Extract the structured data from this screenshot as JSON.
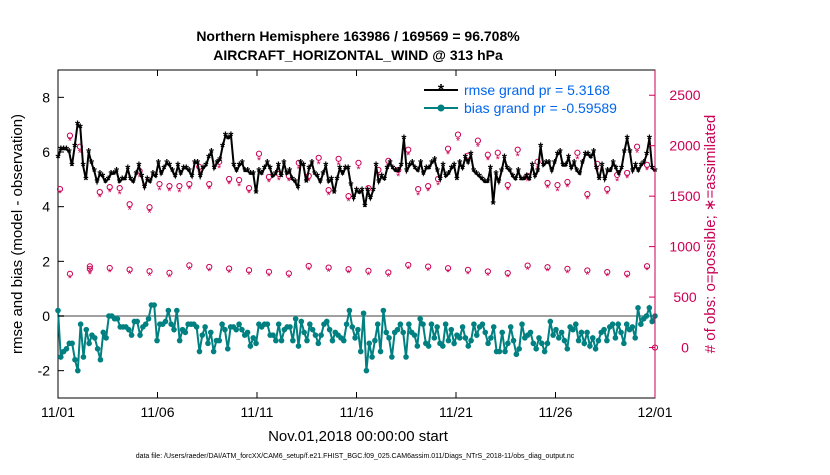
{
  "chart_data": {
    "type": "line",
    "title_line1": "Northern Hemisphere 163986 / 169569 = 96.708%",
    "title_line2": "AIRCRAFT_HORIZONTAL_WIND @ 313 hPa",
    "xlabel": "Nov.01,2018 00:00:00 start",
    "ylabel_left": "rmse and bias (model - observation)",
    "ylabel_right": "# of obs: o=possible; ∗=assimilated",
    "footer": "data file: /Users/raeder/DAI/ATM_forcXX/CAM6_setup/f.e21.FHIST_BGC.f09_025.CAM6assim.011/Diags_NTrS_2018-11/obs_diag_output.nc",
    "x_ticks": [
      "11/01",
      "11/06",
      "11/11",
      "11/16",
      "11/21",
      "11/26",
      "12/01"
    ],
    "x_tick_days": [
      0,
      5,
      10,
      15,
      20,
      25,
      30
    ],
    "xlim": [
      0,
      30
    ],
    "y_left_ticks": [
      "-2",
      "0",
      "2",
      "4",
      "6",
      "8"
    ],
    "y_left_tick_values": [
      -2,
      0,
      2,
      4,
      6,
      8
    ],
    "ylim_left": [
      -3,
      9
    ],
    "y_right_ticks": [
      "0",
      "500",
      "1000",
      "1500",
      "2000",
      "2500"
    ],
    "y_right_tick_values": [
      0,
      500,
      1000,
      1500,
      2000,
      2500
    ],
    "ylim_right": [
      -500,
      2750
    ],
    "legend_location": "top-right",
    "colors": {
      "rmse": "#000000",
      "bias": "#008080",
      "obs": "#cc0055",
      "zero_line": "#a0a0a0",
      "legend_text": "#0066ee"
    },
    "series": [
      {
        "name": "rmse grand pr = 5.3168",
        "axis": "left",
        "marker": "asterisk",
        "values": [
          5.8,
          6.1,
          6.1,
          6.1,
          6.0,
          5.5,
          6.2,
          7.0,
          6.9,
          5.5,
          5.0,
          6.0,
          5.6,
          5.3,
          4.9,
          5.2,
          5.1,
          4.9,
          5.0,
          5.2,
          5.2,
          5.3,
          4.9,
          5.0,
          5.0,
          5.4,
          5.0,
          4.9,
          5.2,
          5.5,
          5.1,
          4.7,
          5.0,
          4.9,
          5.2,
          5.1,
          5.6,
          5.2,
          5.4,
          5.6,
          5.5,
          5.3,
          5.1,
          5.5,
          5.2,
          5.4,
          5.4,
          5.3,
          5.1,
          5.6,
          5.6,
          5.1,
          5.4,
          5.5,
          5.8,
          6.0,
          5.4,
          5.6,
          5.7,
          6.2,
          6.6,
          6.5,
          6.6,
          5.5,
          5.3,
          5.5,
          5.6,
          5.3,
          5.3,
          5.2,
          5.2,
          4.5,
          5.3,
          5.2,
          5.4,
          5.6,
          5.4,
          5.1,
          5.2,
          5.5,
          5.1,
          5.6,
          5.2,
          5.3,
          5.0,
          4.9,
          4.7,
          5.6,
          5.5,
          4.9,
          5.4,
          5.6,
          5.2,
          5.1,
          4.9,
          5.2,
          5.5,
          4.9,
          5.0,
          4.5,
          5.0,
          5.4,
          5.2,
          5.4,
          5.4,
          4.8,
          4.3,
          4.6,
          4.5,
          4.6,
          4.0,
          4.6,
          4.3,
          4.6,
          5.5,
          4.9,
          5.1,
          5.0,
          5.4,
          5.6,
          5.4,
          5.3,
          5.3,
          5.5,
          6.5,
          5.3,
          5.5,
          5.6,
          5.4,
          5.3,
          5.6,
          5.2,
          5.4,
          5.4,
          5.6,
          5.7,
          5.3,
          5.0,
          5.5,
          5.1,
          5.2,
          5.4,
          5.5,
          5.0,
          5.6,
          5.4,
          5.8,
          5.6,
          5.9,
          5.3,
          5.2,
          5.1,
          5.0,
          4.9,
          4.9,
          5.4,
          4.1,
          5.2,
          4.9,
          5.3,
          5.8,
          5.4,
          5.3,
          5.1,
          5.0,
          5.3,
          5.0,
          5.0,
          5.1,
          5.0,
          5.5,
          5.1,
          5.3,
          6.2,
          5.5,
          5.6,
          5.6,
          5.3,
          5.6,
          5.9,
          6.0,
          5.5,
          5.5,
          5.8,
          5.4,
          5.6,
          5.3,
          5.2,
          5.6,
          5.9,
          5.9,
          5.8,
          6.0,
          5.4,
          5.0,
          5.5,
          5.0,
          5.3,
          5.3,
          5.6,
          5.4,
          5.2,
          5.4,
          6.0,
          6.5,
          6.0,
          5.3,
          5.5,
          5.3,
          5.5,
          5.6,
          5.9,
          6.5,
          5.4,
          5.3
        ]
      },
      {
        "name": "bias grand pr = -0.59589",
        "axis": "left",
        "marker": "circle",
        "values": [
          0.2,
          -1.5,
          -1.3,
          -1.2,
          -1.0,
          -1.0,
          -1.6,
          -2.0,
          -0.3,
          -1.5,
          -0.5,
          -1.0,
          -0.7,
          -0.8,
          -1.2,
          -1.6,
          -0.6,
          -0.8,
          0.0,
          0.0,
          -0.1,
          -0.1,
          -0.4,
          -0.4,
          -0.4,
          -0.5,
          -0.7,
          -0.2,
          -0.2,
          -0.7,
          -0.4,
          -0.3,
          -0.1,
          0.4,
          0.4,
          -0.9,
          -0.3,
          -0.3,
          -0.2,
          0.2,
          -0.3,
          -0.5,
          0.2,
          -0.9,
          -0.5,
          -0.6,
          -0.3,
          -0.3,
          -0.3,
          -0.4,
          -1.3,
          -0.7,
          -0.4,
          -1.0,
          -0.6,
          -1.3,
          -0.9,
          -0.9,
          -0.3,
          -0.5,
          -1.2,
          -0.4,
          -0.4,
          -0.5,
          -0.3,
          -0.5,
          -0.7,
          -0.6,
          -1.1,
          -0.8,
          -1.0,
          -0.3,
          -0.4,
          -0.3,
          -0.3,
          -0.7,
          -0.7,
          -0.9,
          -0.3,
          -0.9,
          -0.5,
          -0.4,
          -0.4,
          -0.9,
          -0.1,
          -1.1,
          -0.2,
          -0.6,
          -0.9,
          -0.3,
          -0.5,
          -0.7,
          -1.0,
          -0.7,
          -0.3,
          -0.2,
          -0.5,
          -0.9,
          -0.6,
          -0.7,
          -0.8,
          -0.9,
          -0.3,
          0.2,
          -0.4,
          -0.8,
          -0.5,
          -1.3,
          0.1,
          -2.0,
          -1.0,
          -1.5,
          -0.9,
          -0.3,
          -1.3,
          0.2,
          -0.6,
          -0.8,
          -1.5,
          -0.6,
          -0.5,
          -0.3,
          -0.6,
          -1.5,
          -0.3,
          -0.6,
          -0.7,
          -1.1,
          -0.1,
          -0.3,
          -1.0,
          -1.1,
          -0.3,
          -0.8,
          -0.4,
          -1.0,
          -1.1,
          -0.3,
          -0.9,
          -0.5,
          -1.0,
          -0.7,
          -0.8,
          -0.4,
          -0.8,
          -1.1,
          -0.9,
          -0.3,
          -0.7,
          -0.4,
          -0.3,
          -0.6,
          -1.0,
          -0.8,
          -0.4,
          -1.3,
          -1.3,
          -0.6,
          -1.3,
          -1.0,
          -0.4,
          -0.9,
          -1.4,
          -1.2,
          -0.3,
          -0.8,
          -0.7,
          -0.6,
          -1.0,
          -1.2,
          -0.8,
          -1.0,
          -1.3,
          -1.0,
          -0.2,
          -0.7,
          -0.5,
          -0.8,
          -0.6,
          -0.9,
          -1.2,
          -0.4,
          -0.5,
          -0.3,
          -0.9,
          -0.6,
          -1.0,
          -0.6,
          -1.1,
          -0.8,
          -1.2,
          -0.9,
          -0.6,
          -0.5,
          -0.9,
          -0.4,
          -0.3,
          -0.8,
          -0.3,
          -0.6,
          -1.0,
          -0.3,
          -0.5,
          -0.4,
          -0.8,
          0.3,
          -0.3,
          -0.1,
          0.0,
          0.3,
          -0.2,
          0.0
        ]
      },
      {
        "name": "possible",
        "axis": "right",
        "marker": "circle-open",
        "values": [
          1570,
          2100,
          2150,
          1700,
          2230,
          1590,
          1990,
          2140,
          1620,
          1960,
          1980,
          1560,
          1540,
          1530,
          1660,
          1630,
          1670,
          1500,
          1580,
          1590,
          1600,
          1800,
          1720,
          1680,
          1750,
          1690,
          1780,
          1940,
          2010,
          1660,
          1620,
          1970,
          1890,
          1720,
          1700,
          1820,
          1600,
          1800,
          1490,
          1560,
          1930,
          1750,
          1790,
          1590,
          1500,
          1560,
          2000,
          1960,
          1840,
          1960,
          1800,
          1630,
          1360,
          1620,
          1660,
          1870,
          1990,
          1680,
          1980,
          1990,
          1920,
          1600,
          1940,
          1900,
          1920,
          1660,
          1720,
          1780,
          1800,
          1830,
          2000,
          1910,
          1830,
          1730,
          1990,
          1940,
          2040,
          1970,
          1880,
          2070,
          2050,
          1810,
          1640,
          1640,
          1870,
          1760,
          2000,
          1890,
          1830,
          1960,
          1830,
          1760,
          1890,
          1330,
          2110,
          1950,
          1760,
          2100,
          1720,
          1760,
          1630,
          1700,
          1760,
          1680,
          1930,
          1880,
          1850,
          1840,
          1570,
          1580,
          1800,
          1830,
          1920,
          2160,
          1670,
          1890,
          1810,
          1860,
          2050,
          1640,
          2110,
          1710,
          1690,
          1970,
          1930,
          1860,
          2050,
          1770,
          1880,
          1710,
          1780,
          1890,
          1930,
          1830,
          1780,
          1760,
          1370,
          1810,
          1960,
          1870,
          1880,
          1930,
          1830,
          1940,
          1840,
          1900,
          1920,
          1840,
          1980,
          1830,
          1610,
          1690,
          1810,
          1980,
          1860,
          1610,
          1930,
          1920,
          1770,
          1870,
          2030,
          1950,
          1820,
          2020,
          1820,
          1930,
          1880,
          1790,
          1710,
          1880,
          1930,
          1770,
          1860,
          1950,
          1990,
          1940,
          1950,
          1820,
          1900,
          2030,
          2220,
          1880,
          1820,
          2130,
          1790,
          2040,
          1990,
          1780,
          1700,
          1900,
          1940,
          1690,
          1820,
          1880,
          1550,
          1700,
          1670,
          1640,
          1600,
          1730,
          1740,
          1620,
          1900,
          1800,
          1970,
          1730,
          1770,
          1930,
          1800,
          1980,
          2030,
          1660
        ]
      },
      {
        "name": "assimilated",
        "axis": "right",
        "marker": "asterisk",
        "values": [
          1540,
          2050,
          2120,
          1660,
          2180,
          1540,
          1940,
          2090,
          1580,
          1910,
          1930,
          1510,
          1500,
          1480,
          1610,
          1580,
          1620,
          1450,
          1530,
          1540,
          1550,
          1750,
          1670,
          1630,
          1700,
          1640,
          1730,
          1890,
          1960,
          1610,
          1570,
          1920,
          1840,
          1670,
          1650,
          1770,
          1550,
          1750,
          1440,
          1510,
          1880,
          1700,
          1740,
          1540,
          1450,
          1510,
          1950,
          1910,
          1790,
          1910,
          1750,
          1580,
          1310,
          1570,
          1610,
          1820,
          1940,
          1630,
          1930,
          1940,
          1870,
          1550,
          1890,
          1850,
          1870,
          1610,
          1670,
          1730,
          1750,
          1780,
          1950,
          1860,
          1780,
          1680,
          1940,
          1890,
          1990,
          1920,
          1830,
          2020,
          2000,
          1760,
          1590,
          1590,
          1820,
          1710,
          1950,
          1840,
          1780,
          1910,
          1780,
          1710,
          1840,
          1280,
          2060,
          1900,
          1710,
          2050,
          1670,
          1710,
          1580,
          1650,
          1710,
          1630,
          1880,
          1830,
          1800,
          1790,
          1520,
          1530,
          1750,
          1780,
          1870,
          2110,
          1620,
          1840,
          1760,
          1810,
          2000,
          1590,
          2060,
          1660,
          1640,
          1920,
          1880,
          1810,
          2000,
          1720,
          1830,
          1660,
          1730,
          1840,
          1880,
          1780,
          1730,
          1710,
          1320,
          1760,
          1910,
          1820,
          1830,
          1880,
          1780,
          1890,
          1790,
          1850,
          1870,
          1790,
          1930,
          1780,
          1560,
          1640,
          1760,
          1930,
          1810,
          1560,
          1880,
          1870,
          1720,
          1820,
          1980,
          1900,
          1770,
          1970,
          1770,
          1880,
          1830,
          1740,
          1660,
          1830,
          1880,
          1720,
          1810,
          1900,
          1940,
          1890,
          1900,
          1770,
          1850,
          1980,
          2170,
          1830,
          1770,
          2080,
          1740,
          1990,
          1940,
          1730,
          1650,
          1850,
          1890,
          1640,
          1770,
          1830,
          1500,
          1650,
          1620,
          1590,
          1550,
          1680,
          1690,
          1570,
          1850,
          1750,
          1920,
          1680,
          1720,
          1880,
          1750,
          1930,
          1980,
          1610
        ]
      }
    ],
    "obs_left_possible": [
      {
        "day": 0.0,
        "value": 1570
      },
      {
        "day": 0.25,
        "value": 2100
      },
      {
        "day": 0.5,
        "value": 2150
      },
      {
        "day": 1.5,
        "value": 780
      },
      {
        "day": 2.2,
        "value": 2230
      },
      {
        "day": 2.5,
        "value": 1590
      },
      {
        "day": 3.0,
        "value": 760
      },
      {
        "day": 3.6,
        "value": 1420
      },
      {
        "day": 4.1,
        "value": 1400
      },
      {
        "day": 4.7,
        "value": 1390
      },
      {
        "day": 5.3,
        "value": 1630
      },
      {
        "day": 6.0,
        "value": 1600
      },
      {
        "day": 6.6,
        "value": 1640
      },
      {
        "day": 7.1,
        "value": 1620
      },
      {
        "day": 7.6,
        "value": 1550
      },
      {
        "day": 8.1,
        "value": 1620
      },
      {
        "day": 8.6,
        "value": 1660
      },
      {
        "day": 9.0,
        "value": 1670
      },
      {
        "day": 9.5,
        "value": 1440
      },
      {
        "day": 9.8,
        "value": 1580
      },
      {
        "day": 10.3,
        "value": 1630
      },
      {
        "day": 10.8,
        "value": 1690
      },
      {
        "day": 11.3,
        "value": 1580
      },
      {
        "day": 11.8,
        "value": 1700
      },
      {
        "day": 12.3,
        "value": 1730
      },
      {
        "day": 12.8,
        "value": 1700
      },
      {
        "day": 13.3,
        "value": 1620
      },
      {
        "day": 13.8,
        "value": 1560
      },
      {
        "day": 14.2,
        "value": 1550
      },
      {
        "day": 14.7,
        "value": 1500
      },
      {
        "day": 15.2,
        "value": 1590
      },
      {
        "day": 15.7,
        "value": 1580
      },
      {
        "day": 16.2,
        "value": 1760
      },
      {
        "day": 16.7,
        "value": 1850
      },
      {
        "day": 17.2,
        "value": 1900
      },
      {
        "day": 17.7,
        "value": 1960
      },
      {
        "day": 18.2,
        "value": 1830
      },
      {
        "day": 18.7,
        "value": 1600
      },
      {
        "day": 19.2,
        "value": 1750
      },
      {
        "day": 19.7,
        "value": 1970
      },
      {
        "day": 20.2,
        "value": 1680
      },
      {
        "day": 20.7,
        "value": 1900
      },
      {
        "day": 21.2,
        "value": 1560
      },
      {
        "day": 21.7,
        "value": 1910
      },
      {
        "day": 22.2,
        "value": 1780
      },
      {
        "day": 22.7,
        "value": 1610
      },
      {
        "day": 23.2,
        "value": 1950
      },
      {
        "day": 23.7,
        "value": 1700
      },
      {
        "day": 24.2,
        "value": 1500
      },
      {
        "day": 24.7,
        "value": 1630
      },
      {
        "day": 25.2,
        "value": 1900
      },
      {
        "day": 25.7,
        "value": 1640
      },
      {
        "day": 26.2,
        "value": 1600
      },
      {
        "day": 26.7,
        "value": 1520
      },
      {
        "day": 27.2,
        "value": 1470
      },
      {
        "day": 27.7,
        "value": 1570
      },
      {
        "day": 28.2,
        "value": 1880
      },
      {
        "day": 28.7,
        "value": 1730
      },
      {
        "day": 29.2,
        "value": 1790
      },
      {
        "day": 29.7,
        "value": 1810
      }
    ]
  }
}
